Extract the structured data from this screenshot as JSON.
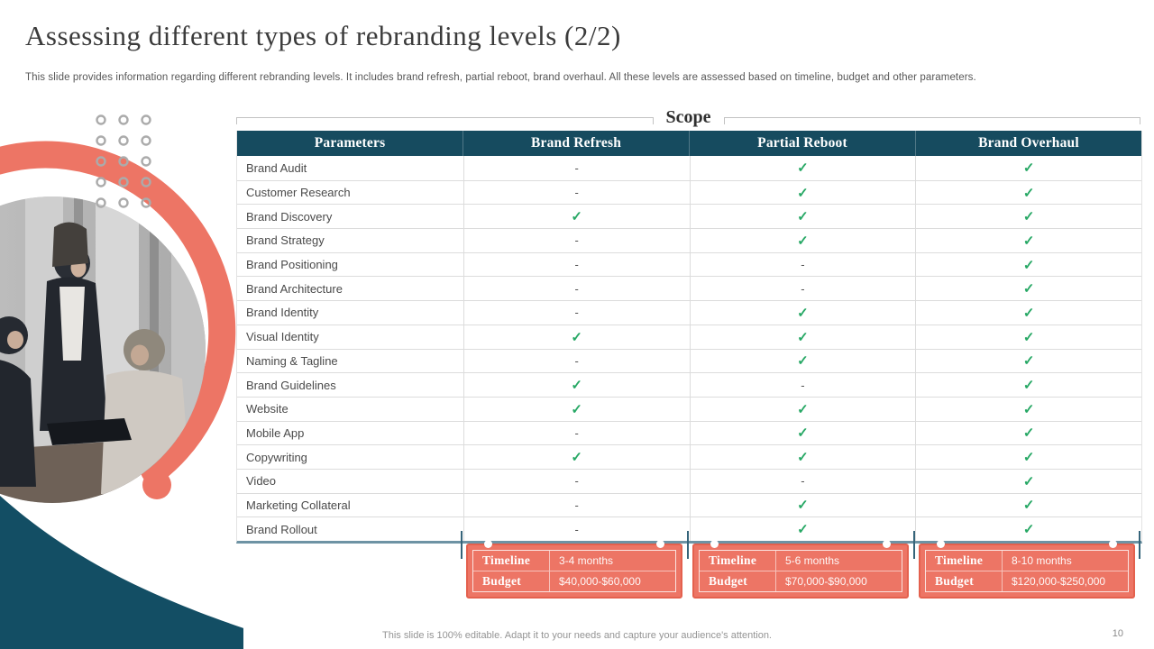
{
  "slide": {
    "title": "Assessing different types of rebranding levels (2/2)",
    "subtitle": "This slide provides information regarding different rebranding levels. It includes brand refresh, partial reboot, brand overhaul. All these levels are assessed based on timeline, budget and other parameters.",
    "footer": "This slide is 100% editable. Adapt it to your needs and capture your audience's attention.",
    "page_number": "10"
  },
  "scope_label": "Scope",
  "table": {
    "columns": [
      "Parameters",
      "Brand Refresh",
      "Partial Reboot",
      "Brand Overhaul"
    ],
    "check_symbol": "✓",
    "dash_symbol": "-",
    "rows": [
      {
        "label": "Brand Audit",
        "marks": [
          "dash",
          "check",
          "check"
        ]
      },
      {
        "label": "Customer Research",
        "marks": [
          "dash",
          "check",
          "check"
        ]
      },
      {
        "label": "Brand Discovery",
        "marks": [
          "check",
          "check",
          "check"
        ]
      },
      {
        "label": "Brand Strategy",
        "marks": [
          "dash",
          "check",
          "check"
        ]
      },
      {
        "label": "Brand Positioning",
        "marks": [
          "dash",
          "dash",
          "check"
        ]
      },
      {
        "label": "Brand Architecture",
        "marks": [
          "dash",
          "dash",
          "check"
        ]
      },
      {
        "label": "Brand Identity",
        "marks": [
          "dash",
          "check",
          "check"
        ]
      },
      {
        "label": "Visual Identity",
        "marks": [
          "check",
          "check",
          "check"
        ]
      },
      {
        "label": "Naming & Tagline",
        "marks": [
          "dash",
          "check",
          "check"
        ]
      },
      {
        "label": "Brand Guidelines",
        "marks": [
          "check",
          "dash",
          "check"
        ]
      },
      {
        "label": "Website",
        "marks": [
          "check",
          "check",
          "check"
        ]
      },
      {
        "label": "Mobile App",
        "marks": [
          "dash",
          "check",
          "check"
        ]
      },
      {
        "label": "Copywriting",
        "marks": [
          "check",
          "check",
          "check"
        ]
      },
      {
        "label": "Video",
        "marks": [
          "dash",
          "dash",
          "check"
        ]
      },
      {
        "label": "Marketing Collateral",
        "marks": [
          "dash",
          "check",
          "check"
        ]
      },
      {
        "label": "Brand Rollout",
        "marks": [
          "dash",
          "check",
          "check"
        ]
      }
    ]
  },
  "info_boxes": [
    {
      "rows": [
        {
          "label": "Timeline",
          "value": "3-4 months"
        },
        {
          "label": "Budget",
          "value": "$40,000-$60,000"
        }
      ]
    },
    {
      "rows": [
        {
          "label": "Timeline",
          "value": "5-6 months"
        },
        {
          "label": "Budget",
          "value": "$70,000-$90,000"
        }
      ]
    },
    {
      "rows": [
        {
          "label": "Timeline",
          "value": "8-10 months"
        },
        {
          "label": "Budget",
          "value": "$120,000-$250,000"
        }
      ]
    }
  ],
  "colors": {
    "header_teal": "#164B5F",
    "coral": "#ED7565",
    "coral_border": "#E4614E",
    "check_green": "#27A865",
    "wedge_teal": "#134E64",
    "table_bottom": "#6E93A4"
  },
  "decoration": {
    "photo": "business-team-meeting-photo",
    "shapes": [
      "coral-arc",
      "coral-end-dot",
      "teal-corner-wedge",
      "dot-grid"
    ]
  }
}
